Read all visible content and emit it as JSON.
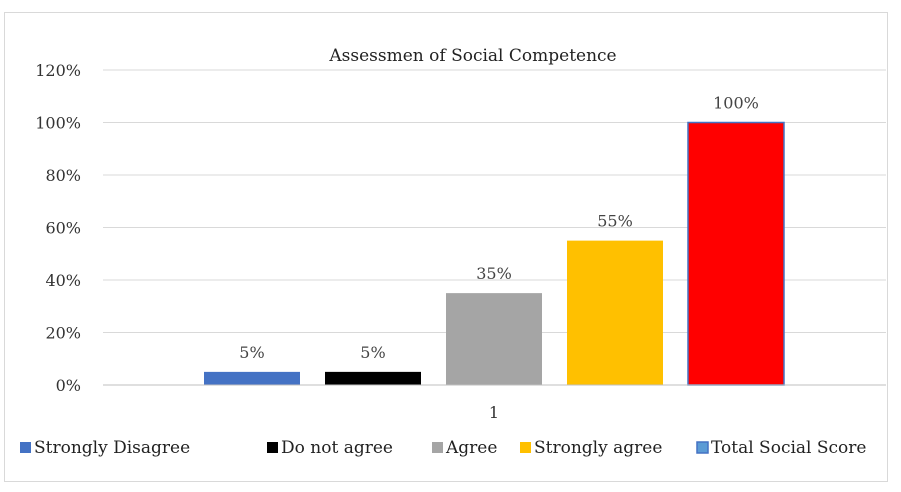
{
  "chart_data": {
    "type": "bar",
    "title": "Assessmen of Social Competence",
    "categories": [
      "1"
    ],
    "ylim": [
      0,
      120
    ],
    "y_ticks": [
      "0%",
      "20%",
      "40%",
      "60%",
      "80%",
      "100%",
      "120%"
    ],
    "y_tick_values": [
      0,
      20,
      40,
      60,
      80,
      100,
      120
    ],
    "grid": true,
    "legend_position": "bottom",
    "series": [
      {
        "name": "Strongly Disagree",
        "values": [
          5
        ],
        "label": "5%",
        "color": "#4472c4"
      },
      {
        "name": "Do not agree",
        "values": [
          5
        ],
        "label": "5%",
        "color": "#000000"
      },
      {
        "name": "Agree",
        "values": [
          35
        ],
        "label": "35%",
        "color": "#a5a5a5"
      },
      {
        "name": "Strongly agree",
        "values": [
          55
        ],
        "label": "55%",
        "color": "#ffc000"
      },
      {
        "name": "Total Social Score",
        "values": [
          100
        ],
        "label": "100%",
        "color": "#ff0000",
        "legend_color": "#5b9bd5",
        "border_color": "#4472c4"
      }
    ]
  }
}
